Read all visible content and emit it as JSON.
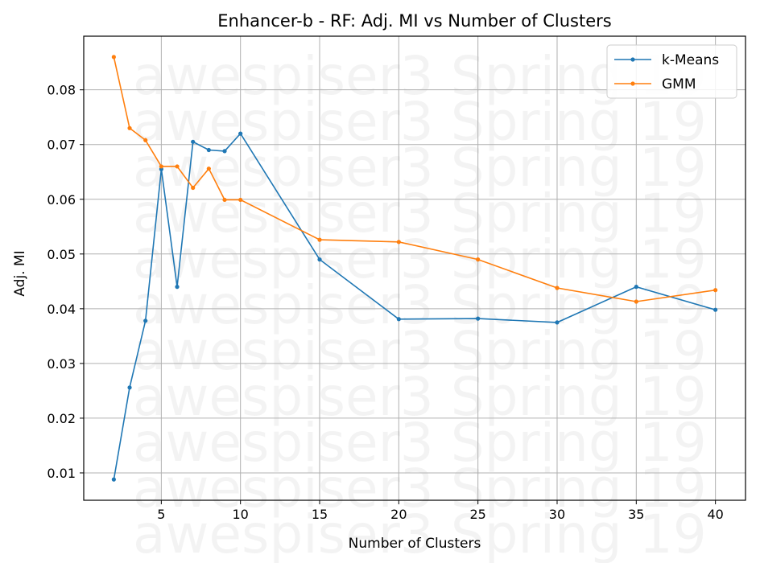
{
  "chart_data": {
    "type": "line",
    "title": "Enhancer-b - RF: Adj. MI vs Number of Clusters",
    "xlabel": "Number of Clusters",
    "ylabel": "Adj. MI",
    "xlim": [
      0.1,
      41.9
    ],
    "ylim": [
      0.005,
      0.0898
    ],
    "xticks": [
      5,
      10,
      15,
      20,
      25,
      30,
      35,
      40
    ],
    "yticks": [
      0.01,
      0.02,
      0.03,
      0.04,
      0.05,
      0.06,
      0.07,
      0.08
    ],
    "grid": true,
    "legend_position": "top-right",
    "watermark": "awespiser3 Spring 19",
    "x": [
      2,
      3,
      4,
      5,
      6,
      7,
      8,
      9,
      10,
      15,
      20,
      25,
      30,
      35,
      40
    ],
    "series": [
      {
        "name": "k-Means",
        "color": "#1f77b4",
        "values": [
          0.0088,
          0.0256,
          0.0378,
          0.0655,
          0.044,
          0.0705,
          0.069,
          0.0688,
          0.072,
          0.049,
          0.0381,
          0.0382,
          0.0375,
          0.044,
          0.0398
        ]
      },
      {
        "name": "GMM",
        "color": "#ff7f0e",
        "values": [
          0.086,
          0.073,
          0.0708,
          0.066,
          0.066,
          0.0621,
          0.0656,
          0.0599,
          0.0599,
          0.0526,
          0.0522,
          0.049,
          0.0438,
          0.0413,
          0.0434
        ]
      }
    ]
  }
}
